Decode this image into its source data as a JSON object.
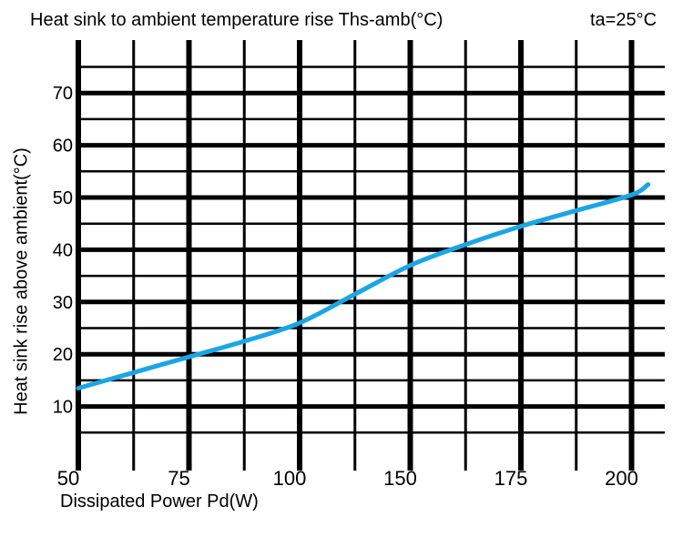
{
  "chart_data": {
    "type": "line",
    "title": "Heat sink to ambient temperature rise Ths-amb(°C)",
    "condition": "ta=25°C",
    "xlabel": "Dissipated Power Pd(W)",
    "ylabel": "Heat sink rise above ambient(°C)",
    "x_ticks": [
      "50",
      "75",
      "100",
      "150",
      "175",
      "200"
    ],
    "y_ticks": [
      "10",
      "20",
      "30",
      "40",
      "50",
      "60",
      "70"
    ],
    "ylim": [
      0,
      80
    ],
    "grid": true,
    "line_color": "#1aa6e6",
    "series": [
      {
        "x_tick_index": [
          0,
          0.5,
          1,
          1.5,
          2,
          2.5,
          3,
          3.5,
          4,
          4.5,
          5,
          5.15
        ],
        "values": [
          13.5,
          16.5,
          19.5,
          22.5,
          26,
          31.5,
          37,
          41,
          44.5,
          47.5,
          50.5,
          52.5
        ]
      }
    ]
  }
}
